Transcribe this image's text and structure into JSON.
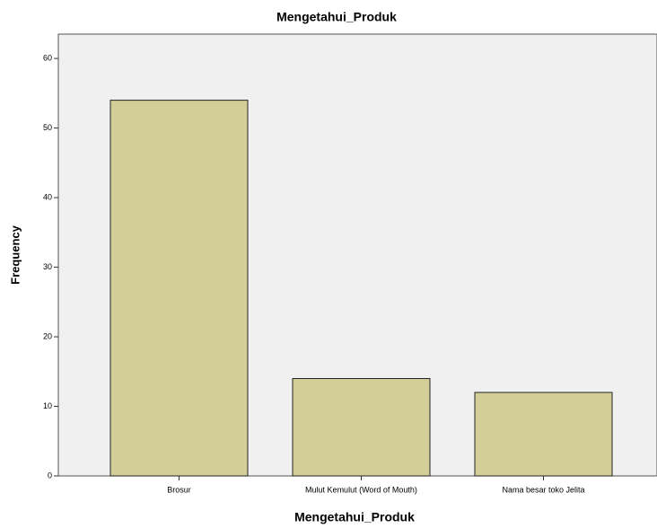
{
  "chart_data": {
    "type": "bar",
    "title": "Mengetahui_Produk",
    "x_label": "Mengetahui_Produk",
    "y_label": "Frequency",
    "categories": [
      "Brosur",
      "Mulut Kemulut (Word of Mouth)",
      "Nama besar toko Jelita"
    ],
    "values": [
      54,
      14,
      12
    ],
    "color": "#d3cd97",
    "ylim": [
      0,
      63.5
    ],
    "yticks": [
      0,
      10,
      20,
      30,
      40,
      50,
      60
    ],
    "grid": false
  }
}
